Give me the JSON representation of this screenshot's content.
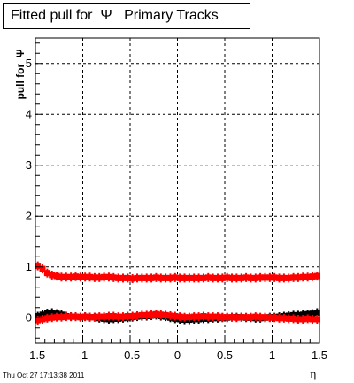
{
  "chart_data": {
    "type": "scatter",
    "title": "Fitted pull for  Ψ   Primary Tracks",
    "xlabel": "η",
    "ylabel": "pull for  Ψ",
    "xlim": [
      -1.5,
      1.5
    ],
    "ylim": [
      -0.5,
      5.5
    ],
    "x_ticks": [
      "-1.5",
      "-1",
      "-0.5",
      "0",
      "0.5",
      "1",
      "1.5"
    ],
    "y_ticks": [
      "0",
      "1",
      "2",
      "3",
      "4",
      "5"
    ],
    "grid": true,
    "series": [
      {
        "color": "#000000",
        "x": [
          -1.475,
          -1.425,
          -1.375,
          -1.325,
          -1.275,
          -1.225,
          -1.175,
          -1.125,
          -1.075,
          -1.025,
          -0.975,
          -0.925,
          -0.875,
          -0.825,
          -0.775,
          -0.725,
          -0.675,
          -0.625,
          -0.575,
          -0.525,
          -0.475,
          -0.425,
          -0.375,
          -0.325,
          -0.275,
          -0.225,
          -0.175,
          -0.125,
          -0.075,
          -0.025,
          0.025,
          0.075,
          0.125,
          0.175,
          0.225,
          0.275,
          0.325,
          0.375,
          0.425,
          0.475,
          0.525,
          0.575,
          0.625,
          0.675,
          0.725,
          0.775,
          0.825,
          0.875,
          0.925,
          0.975,
          1.025,
          1.075,
          1.125,
          1.175,
          1.225,
          1.275,
          1.325,
          1.375,
          1.425,
          1.475
        ],
        "values": [
          0.03,
          0.06,
          0.09,
          0.1,
          0.08,
          0.06,
          0.03,
          0.02,
          0.02,
          0.01,
          0.02,
          0.01,
          0.01,
          -0.01,
          -0.02,
          -0.03,
          -0.02,
          -0.02,
          -0.01,
          0.0,
          0.01,
          0.02,
          0.03,
          0.03,
          0.04,
          0.05,
          0.03,
          0.02,
          0.0,
          -0.02,
          -0.03,
          -0.04,
          -0.04,
          -0.03,
          -0.03,
          -0.02,
          -0.02,
          -0.01,
          -0.01,
          0.0,
          0.0,
          0.01,
          0.01,
          0.01,
          0.0,
          0.0,
          -0.01,
          -0.01,
          0.0,
          0.01,
          0.01,
          0.02,
          0.03,
          0.04,
          0.05,
          0.05,
          0.06,
          0.07,
          0.08,
          0.1
        ]
      },
      {
        "color": "#ff0000",
        "x": [
          -1.475,
          -1.425,
          -1.375,
          -1.325,
          -1.275,
          -1.225,
          -1.175,
          -1.125,
          -1.075,
          -1.025,
          -0.975,
          -0.925,
          -0.875,
          -0.825,
          -0.775,
          -0.725,
          -0.675,
          -0.625,
          -0.575,
          -0.525,
          -0.475,
          -0.425,
          -0.375,
          -0.325,
          -0.275,
          -0.225,
          -0.175,
          -0.125,
          -0.075,
          -0.025,
          0.025,
          0.075,
          0.125,
          0.175,
          0.225,
          0.275,
          0.325,
          0.375,
          0.425,
          0.475,
          0.525,
          0.575,
          0.625,
          0.675,
          0.725,
          0.775,
          0.825,
          0.875,
          0.925,
          0.975,
          1.025,
          1.075,
          1.125,
          1.175,
          1.225,
          1.275,
          1.325,
          1.375,
          1.425,
          1.475
        ],
        "values": [
          -0.05,
          -0.03,
          -0.01,
          0.0,
          0.01,
          0.01,
          0.02,
          0.02,
          0.02,
          0.01,
          0.02,
          0.01,
          0.01,
          0.02,
          0.02,
          0.03,
          0.03,
          0.02,
          0.02,
          0.03,
          0.03,
          0.04,
          0.05,
          0.05,
          0.06,
          0.07,
          0.06,
          0.05,
          0.04,
          0.03,
          0.02,
          0.01,
          0.01,
          0.02,
          0.02,
          0.03,
          0.02,
          0.02,
          0.02,
          0.01,
          0.01,
          0.01,
          0.0,
          0.01,
          0.01,
          0.01,
          0.02,
          0.01,
          0.01,
          0.0,
          0.0,
          -0.01,
          -0.01,
          -0.02,
          -0.02,
          -0.03,
          -0.03,
          -0.02,
          -0.03,
          -0.03
        ]
      },
      {
        "color": "#ff0000",
        "x": [
          -1.475,
          -1.425,
          -1.375,
          -1.325,
          -1.275,
          -1.225,
          -1.175,
          -1.125,
          -1.075,
          -1.025,
          -0.975,
          -0.925,
          -0.875,
          -0.825,
          -0.775,
          -0.725,
          -0.675,
          -0.625,
          -0.575,
          -0.525,
          -0.475,
          -0.425,
          -0.375,
          -0.325,
          -0.275,
          -0.225,
          -0.175,
          -0.125,
          -0.075,
          -0.025,
          0.025,
          0.075,
          0.125,
          0.175,
          0.225,
          0.275,
          0.325,
          0.375,
          0.425,
          0.475,
          0.525,
          0.575,
          0.625,
          0.675,
          0.725,
          0.775,
          0.825,
          0.875,
          0.925,
          0.975,
          1.025,
          1.075,
          1.125,
          1.175,
          1.225,
          1.275,
          1.325,
          1.375,
          1.425,
          1.475
        ],
        "values": [
          1.02,
          0.96,
          0.88,
          0.84,
          0.82,
          0.8,
          0.8,
          0.8,
          0.81,
          0.8,
          0.8,
          0.8,
          0.79,
          0.79,
          0.8,
          0.8,
          0.79,
          0.78,
          0.78,
          0.78,
          0.77,
          0.78,
          0.78,
          0.78,
          0.78,
          0.79,
          0.78,
          0.78,
          0.78,
          0.79,
          0.78,
          0.78,
          0.78,
          0.78,
          0.78,
          0.78,
          0.79,
          0.78,
          0.78,
          0.78,
          0.79,
          0.78,
          0.78,
          0.78,
          0.79,
          0.78,
          0.78,
          0.79,
          0.79,
          0.79,
          0.79,
          0.78,
          0.78,
          0.78,
          0.79,
          0.79,
          0.8,
          0.8,
          0.81,
          0.82
        ]
      }
    ]
  },
  "footer": {
    "timestamp": "Thu Oct 27 17:13:38 2011"
  }
}
